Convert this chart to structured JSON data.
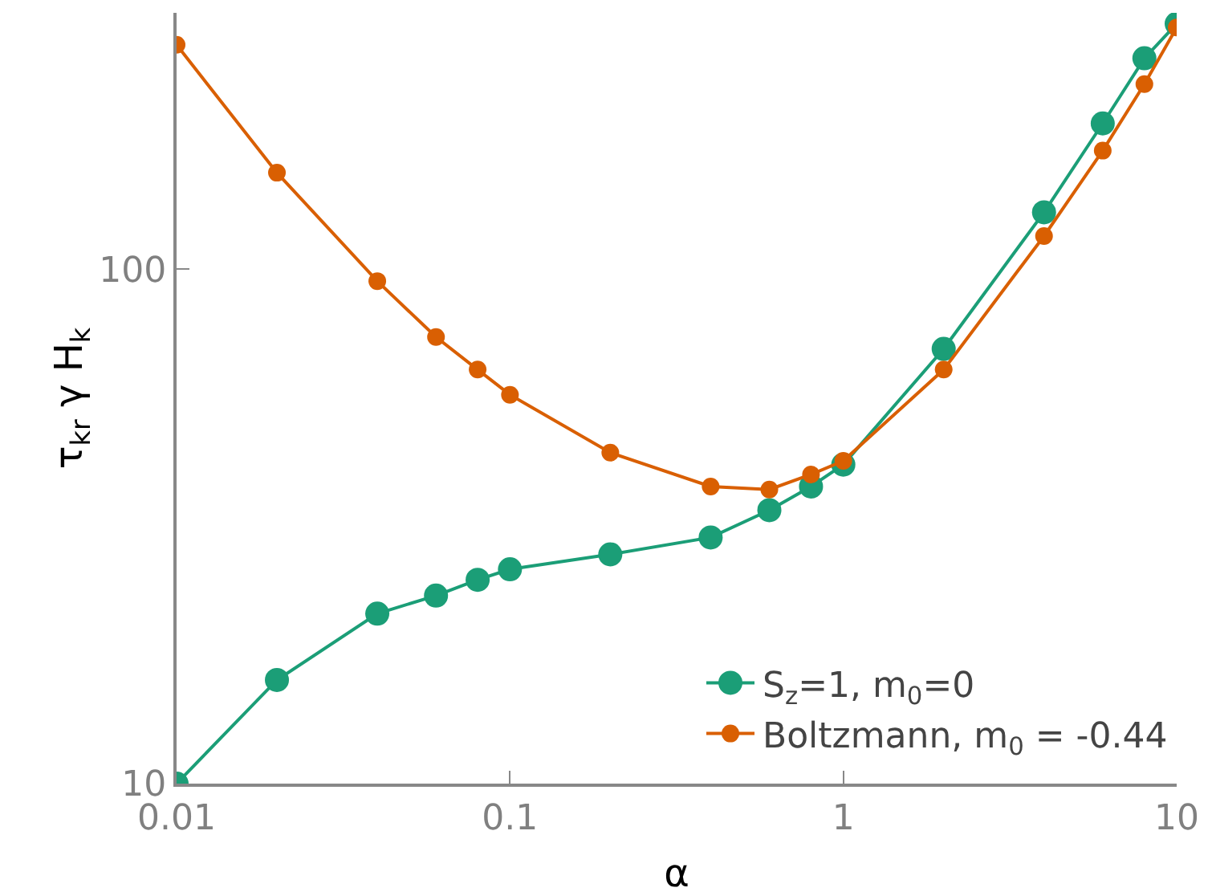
{
  "chart_data": {
    "type": "line",
    "xlabel": "α",
    "ylabel": "τ$_{kr}$ γ H$_{k}$",
    "log": "xy",
    "grid": false,
    "legend": "bottom right",
    "marker": "circle",
    "line_style": "solid",
    "x": [
      0.01,
      0.02,
      0.04,
      0.06,
      0.08,
      0.1,
      0.2,
      0.4,
      0.6,
      0.8,
      1,
      2,
      4,
      6,
      8,
      10
    ],
    "xlim": [
      0.01,
      10
    ],
    "xticks": [
      0.01,
      0.1,
      1,
      10
    ],
    "ylim": [
      10,
      315
    ],
    "yticks": [
      10,
      100
    ],
    "series": [
      {
        "name": "S$_{z}$=1, m$_{0}$=0",
        "color": "#1b9e77",
        "values": [
          10,
          15.9,
          21.4,
          23.2,
          24.9,
          26.1,
          27.9,
          30.1,
          34,
          37.8,
          41.7,
          70,
          129,
          192,
          257,
          300
        ]
      },
      {
        "name": "Boltzmann, m$_{0}$ = -0.44",
        "color": "#d95f02",
        "values": [
          273,
          154,
          94.8,
          73.8,
          63.8,
          57,
          44,
          37.8,
          37.3,
          39.9,
          42.4,
          63.8,
          116,
          170,
          229,
          295
        ]
      }
    ]
  }
}
